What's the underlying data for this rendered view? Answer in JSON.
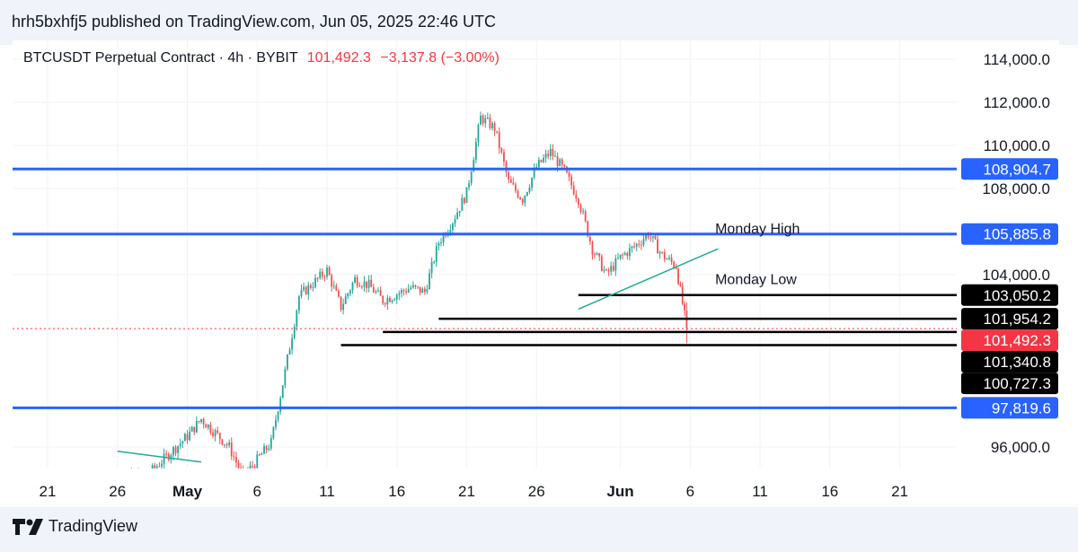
{
  "header": {
    "published_line": "hrh5bxhfj5 published on TradingView.com, Jun 05, 2025 22:46 UTC"
  },
  "symbol": {
    "name": "BTCUSDT Perpetual Contract · 4h · BYBIT",
    "price": "101,492.3",
    "change": "−3,137.8 (−3.00%)"
  },
  "footer": {
    "brand": "TradingView"
  },
  "colors": {
    "up": "#26a69a",
    "down": "#ef5350",
    "level_blue": "#2962ff",
    "last_price": "#f23645",
    "support_black": "#000000",
    "trendline": "#22ab94"
  },
  "chart_data": {
    "type": "candlestick",
    "timeframe": "4h",
    "y_range": [
      95000,
      115000
    ],
    "y_ticks": [
      {
        "value": 96000,
        "label": "96,000.0"
      },
      {
        "value": 104000,
        "label": "104,000.0"
      },
      {
        "value": 108000,
        "label": "108,000.0"
      },
      {
        "value": 110000,
        "label": "110,000.0"
      },
      {
        "value": 112000,
        "label": "112,000.0"
      },
      {
        "value": 114000,
        "label": "114,000.0"
      }
    ],
    "x_ticks": [
      {
        "label": "21",
        "date": "2025-04-21",
        "bold": false
      },
      {
        "label": "26",
        "date": "2025-04-26",
        "bold": false
      },
      {
        "label": "May",
        "date": "2025-05-01",
        "bold": true
      },
      {
        "label": "6",
        "date": "2025-05-06",
        "bold": false
      },
      {
        "label": "11",
        "date": "2025-05-11",
        "bold": false
      },
      {
        "label": "16",
        "date": "2025-05-16",
        "bold": false
      },
      {
        "label": "21",
        "date": "2025-05-21",
        "bold": false
      },
      {
        "label": "26",
        "date": "2025-05-26",
        "bold": false
      },
      {
        "label": "Jun",
        "date": "2025-06-01",
        "bold": true
      },
      {
        "label": "6",
        "date": "2025-06-06",
        "bold": false
      },
      {
        "label": "11",
        "date": "2025-06-11",
        "bold": false
      },
      {
        "label": "16",
        "date": "2025-06-16",
        "bold": false
      },
      {
        "label": "21",
        "date": "2025-06-21",
        "bold": false
      }
    ],
    "price_path": [
      {
        "date": "2025-04-25",
        "price": 94800
      },
      {
        "date": "2025-04-28",
        "price": 94600
      },
      {
        "date": "2025-05-01",
        "price": 96500
      },
      {
        "date": "2025-05-02",
        "price": 97300
      },
      {
        "date": "2025-05-04",
        "price": 96000
      },
      {
        "date": "2025-05-05",
        "price": 94600
      },
      {
        "date": "2025-05-07",
        "price": 96200
      },
      {
        "date": "2025-05-08",
        "price": 99500
      },
      {
        "date": "2025-05-09",
        "price": 103000
      },
      {
        "date": "2025-05-11",
        "price": 104200
      },
      {
        "date": "2025-05-12",
        "price": 102500
      },
      {
        "date": "2025-05-13",
        "price": 103800
      },
      {
        "date": "2025-05-14",
        "price": 103500
      },
      {
        "date": "2025-05-15",
        "price": 102800
      },
      {
        "date": "2025-05-17",
        "price": 103400
      },
      {
        "date": "2025-05-18",
        "price": 103200
      },
      {
        "date": "2025-05-19",
        "price": 105500
      },
      {
        "date": "2025-05-20",
        "price": 106500
      },
      {
        "date": "2025-05-21",
        "price": 107800
      },
      {
        "date": "2025-05-22",
        "price": 111300
      },
      {
        "date": "2025-05-23",
        "price": 110800
      },
      {
        "date": "2025-05-24",
        "price": 108300
      },
      {
        "date": "2025-05-25",
        "price": 107500
      },
      {
        "date": "2025-05-26",
        "price": 109000
      },
      {
        "date": "2025-05-27",
        "price": 109700
      },
      {
        "date": "2025-05-28",
        "price": 108800
      },
      {
        "date": "2025-05-29",
        "price": 107500
      },
      {
        "date": "2025-05-30",
        "price": 105200
      },
      {
        "date": "2025-05-31",
        "price": 104000
      },
      {
        "date": "2025-06-01",
        "price": 104800
      },
      {
        "date": "2025-06-02",
        "price": 105300
      },
      {
        "date": "2025-06-03",
        "price": 105900
      },
      {
        "date": "2025-06-04",
        "price": 104900
      },
      {
        "date": "2025-06-05",
        "price": 104400
      },
      {
        "date": "2025-06-05T18:00",
        "price": 101492
      }
    ],
    "horizontal_levels": [
      {
        "price": 108904.7,
        "label": "108,904.7",
        "style": "blue",
        "from": "start"
      },
      {
        "price": 105885.8,
        "label": "105,885.8",
        "style": "blue",
        "from": "start"
      },
      {
        "price": 97819.6,
        "label": "97,819.6",
        "style": "blue",
        "from": "start"
      },
      {
        "price": 103050.2,
        "label": "103,050.2",
        "style": "black",
        "from": "2025-05-29"
      },
      {
        "price": 101954.2,
        "label": "101,954.2",
        "style": "black",
        "from": "2025-05-19"
      },
      {
        "price": 101340.8,
        "label": "101,340.8",
        "style": "black",
        "from": "2025-05-15"
      },
      {
        "price": 100727.3,
        "label": "100,727.3",
        "style": "black",
        "from": "2025-05-12"
      }
    ],
    "last_price": {
      "price": 101492.3,
      "label": "101,492.3"
    },
    "annotations": [
      {
        "text": "Monday High",
        "date": "2025-06-02",
        "price": 106000
      },
      {
        "text": "Monday Low",
        "date": "2025-06-02",
        "price": 103650
      }
    ],
    "trendlines": [
      {
        "from": {
          "date": "2025-05-29",
          "price": 102400
        },
        "to": {
          "date": "2025-06-08",
          "price": 105200
        }
      },
      {
        "from": {
          "date": "2025-04-26",
          "price": 95800
        },
        "to": {
          "date": "2025-05-02",
          "price": 95300
        }
      }
    ]
  }
}
